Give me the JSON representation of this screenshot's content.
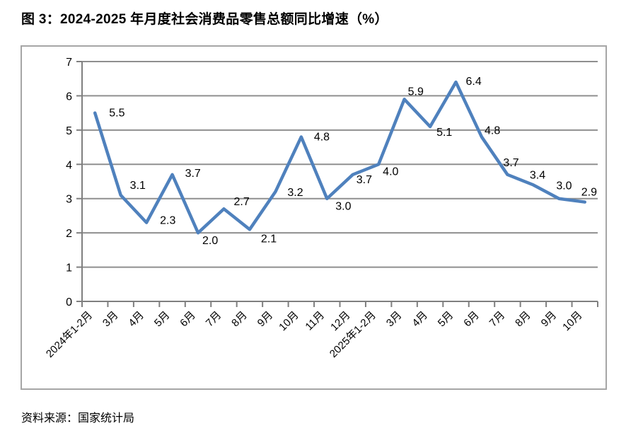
{
  "title": "图 3：2024-2025 年月度社会消费品零售总额同比增速（%）",
  "source_note": "资料来源：国家统计局",
  "colors": {
    "line": "#4F81BD",
    "grid": "#8F8F8F",
    "axis": "#7F7F7F",
    "border": "#A6A6A6",
    "text": "#000000",
    "background": "#FFFFFF"
  },
  "chart_data": {
    "type": "line",
    "title": "图 3：2024-2025 年月度社会消费品零售总额同比增速（%）",
    "categories": [
      "2024年1-2月",
      "3月",
      "4月",
      "5月",
      "6月",
      "7月",
      "8月",
      "9月",
      "10月",
      "11月",
      "12月",
      "2025年1-2月",
      "3月",
      "4月",
      "5月",
      "6月",
      "7月",
      "8月",
      "9月",
      "10月"
    ],
    "values": [
      5.5,
      3.1,
      2.3,
      3.7,
      2.0,
      2.7,
      2.1,
      3.2,
      4.8,
      3.0,
      3.7,
      4.0,
      5.9,
      5.1,
      6.4,
      4.8,
      3.7,
      3.4,
      3.0,
      2.9
    ],
    "xlabel": "",
    "ylabel": "",
    "ylim": [
      0,
      7
    ],
    "y_ticks": [
      0,
      1,
      2,
      3,
      4,
      5,
      6,
      7
    ],
    "grid": true,
    "legend": false,
    "data_labels": true,
    "x_label_rotation_deg": -45,
    "line_color": "#4F81BD",
    "source_note": "资料来源：国家统计局"
  }
}
